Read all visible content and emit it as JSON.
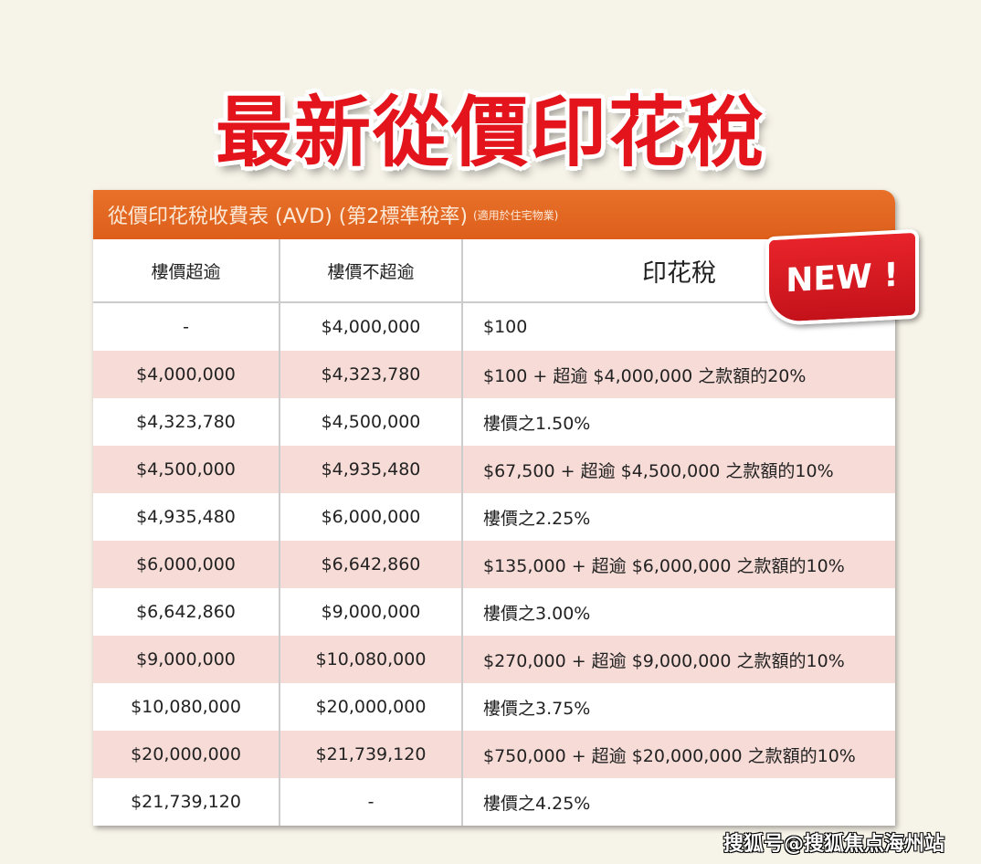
{
  "title": "最新從價印花稅",
  "table": {
    "caption": "從價印花稅收費表 (AVD) (第2標準稅率)",
    "caption_note": "(適用於住宅物業)",
    "headers": [
      "樓價超逾",
      "樓價不超逾",
      "印花稅"
    ],
    "rows": [
      [
        "-",
        "$4,000,000",
        "$100"
      ],
      [
        "$4,000,000",
        "$4,323,780",
        "$100 + 超逾 $4,000,000 之款額的20%"
      ],
      [
        "$4,323,780",
        "$4,500,000",
        "樓價之1.50%"
      ],
      [
        "$4,500,000",
        "$4,935,480",
        "$67,500 + 超逾 $4,500,000 之款額的10%"
      ],
      [
        "$4,935,480",
        "$6,000,000",
        "樓價之2.25%"
      ],
      [
        "$6,000,000",
        "$6,642,860",
        "$135,000 + 超逾 $6,000,000 之款額的10%"
      ],
      [
        "$6,642,860",
        "$9,000,000",
        "樓價之3.00%"
      ],
      [
        "$9,000,000",
        "$10,080,000",
        "$270,000 + 超逾 $9,000,000 之款額的10%"
      ],
      [
        "$10,080,000",
        "$20,000,000",
        "樓價之3.75%"
      ],
      [
        "$20,000,000",
        "$21,739,120",
        "$750,000 + 超逾 $20,000,000 之款額的10%"
      ],
      [
        "$21,739,120",
        "-",
        "樓價之4.25%"
      ]
    ]
  },
  "badge": "NEW !",
  "watermark": "搜狐号@搜狐焦点海州站",
  "colors": {
    "title": "#e3141b",
    "band": "#e26a22",
    "alt_row": "#f6dbd6",
    "badge": "#d9161f"
  }
}
